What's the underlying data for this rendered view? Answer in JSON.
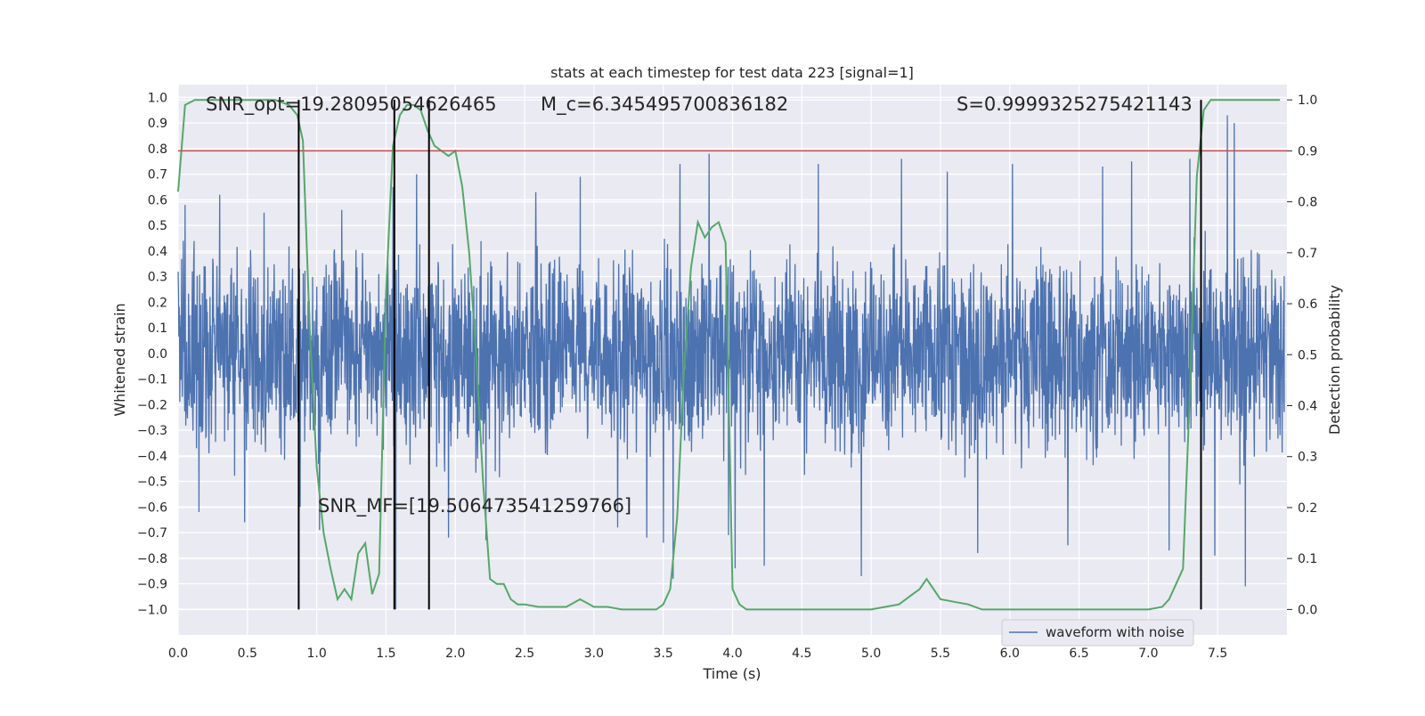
{
  "chart_data": {
    "type": "line",
    "title": "stats at each timestep for test data 223 [signal=1]",
    "xlabel": "Time (s)",
    "ylabel_left": "Whitened strain",
    "ylabel_right": "Detection probability",
    "xlim": [
      0.0,
      8.0
    ],
    "ylim_left": [
      -1.1,
      1.05
    ],
    "ylim_right": [
      -0.05,
      1.03
    ],
    "x_ticks": [
      "0.0",
      "0.5",
      "1.0",
      "1.5",
      "2.0",
      "2.5",
      "3.0",
      "3.5",
      "4.0",
      "4.5",
      "5.0",
      "5.5",
      "6.0",
      "6.5",
      "7.0",
      "7.5"
    ],
    "y_left_ticks": [
      "1.0",
      "0.9",
      "0.8",
      "0.7",
      "0.6",
      "0.5",
      "0.4",
      "0.3",
      "0.2",
      "0.1",
      "0.0",
      "-0.1",
      "-0.2",
      "-0.3",
      "-0.4",
      "-0.5",
      "-0.6",
      "-0.7",
      "-0.8",
      "-0.9",
      "-1.0"
    ],
    "y_right_ticks": [
      "0.0",
      "0.1",
      "0.2",
      "0.3",
      "0.4",
      "0.5",
      "0.6",
      "0.7",
      "0.8",
      "0.9",
      "1.0"
    ],
    "grid": true,
    "legend_position": "bottom-right",
    "series": [
      {
        "name": "waveform with noise",
        "axis": "left",
        "color": "#4c72b0",
        "kind": "dense noise",
        "typical_amplitude": 0.45,
        "extreme_range": [
          -1.0,
          0.93
        ],
        "spike_times": [
          0.05,
          0.15,
          0.3,
          0.48,
          0.62,
          0.88,
          1.02,
          1.18,
          1.55,
          1.57,
          1.72,
          1.95,
          2.22,
          2.58,
          2.9,
          3.17,
          3.38,
          3.5,
          3.57,
          3.62,
          3.83,
          3.97,
          4.02,
          4.23,
          4.62,
          4.93,
          5.22,
          5.55,
          5.77,
          6.02,
          6.42,
          6.67,
          6.88,
          7.15,
          7.3,
          7.48,
          7.57,
          7.62,
          7.7
        ],
        "spike_values": [
          0.58,
          -0.62,
          0.62,
          -0.66,
          0.55,
          -0.6,
          -0.69,
          0.56,
          0.65,
          -1.0,
          0.7,
          -0.72,
          -0.73,
          0.63,
          0.69,
          -0.68,
          -0.72,
          -0.74,
          -0.88,
          0.74,
          0.78,
          -0.71,
          -0.84,
          -0.83,
          0.74,
          -0.87,
          0.76,
          0.71,
          -0.78,
          0.74,
          -0.75,
          0.73,
          0.75,
          -0.77,
          0.76,
          -0.79,
          0.93,
          0.9,
          -0.91
        ]
      },
      {
        "name": "",
        "axis": "right",
        "color": "#55a868",
        "x": [
          0.0,
          0.05,
          0.12,
          0.2,
          0.3,
          0.45,
          0.6,
          0.7,
          0.8,
          0.86,
          0.9,
          0.95,
          1.0,
          1.05,
          1.1,
          1.15,
          1.2,
          1.25,
          1.3,
          1.35,
          1.4,
          1.45,
          1.5,
          1.55,
          1.6,
          1.65,
          1.7,
          1.75,
          1.8,
          1.85,
          1.9,
          1.95,
          2.0,
          2.05,
          2.1,
          2.15,
          2.2,
          2.25,
          2.3,
          2.35,
          2.4,
          2.45,
          2.5,
          2.6,
          2.7,
          2.8,
          2.9,
          3.0,
          3.1,
          3.2,
          3.3,
          3.4,
          3.45,
          3.5,
          3.55,
          3.6,
          3.65,
          3.7,
          3.75,
          3.8,
          3.85,
          3.9,
          3.95,
          4.0,
          4.05,
          4.1,
          4.2,
          4.4,
          4.6,
          4.8,
          5.0,
          5.1,
          5.2,
          5.3,
          5.35,
          5.4,
          5.45,
          5.5,
          5.6,
          5.7,
          5.8,
          6.0,
          6.2,
          6.4,
          6.6,
          6.8,
          7.0,
          7.1,
          7.15,
          7.2,
          7.25,
          7.3,
          7.35,
          7.4,
          7.45,
          7.5,
          7.6,
          7.8,
          7.95
        ],
        "y": [
          0.82,
          0.99,
          1.0,
          1.0,
          1.0,
          1.0,
          1.0,
          1.0,
          0.99,
          0.97,
          0.92,
          0.55,
          0.28,
          0.15,
          0.08,
          0.02,
          0.04,
          0.02,
          0.11,
          0.13,
          0.03,
          0.07,
          0.62,
          0.91,
          0.97,
          0.99,
          0.99,
          0.98,
          0.94,
          0.91,
          0.9,
          0.89,
          0.9,
          0.83,
          0.7,
          0.5,
          0.25,
          0.06,
          0.05,
          0.05,
          0.02,
          0.01,
          0.01,
          0.005,
          0.005,
          0.005,
          0.02,
          0.005,
          0.005,
          0.0,
          0.0,
          0.0,
          0.0,
          0.01,
          0.04,
          0.18,
          0.47,
          0.67,
          0.76,
          0.73,
          0.75,
          0.76,
          0.72,
          0.04,
          0.01,
          0.0,
          0.0,
          0.0,
          0.0,
          0.0,
          0.0,
          0.005,
          0.01,
          0.03,
          0.04,
          0.06,
          0.04,
          0.02,
          0.015,
          0.01,
          0.0,
          0.0,
          0.0,
          0.0,
          0.0,
          0.0,
          0.0,
          0.005,
          0.02,
          0.05,
          0.08,
          0.43,
          0.85,
          0.98,
          1.0,
          1.0,
          1.0,
          1.0,
          1.0
        ]
      }
    ],
    "threshold_line": {
      "axis": "right",
      "value": 0.9,
      "color": "#c44e52"
    },
    "vertical_lines": [
      0.87,
      1.56,
      1.81,
      7.38
    ],
    "annotations": [
      "SNR_opt=19.28095054626465",
      "M_c=6.345495700836182",
      "S=0.9999325275421143",
      "SNR_MF=[19.506473541259766]"
    ]
  }
}
